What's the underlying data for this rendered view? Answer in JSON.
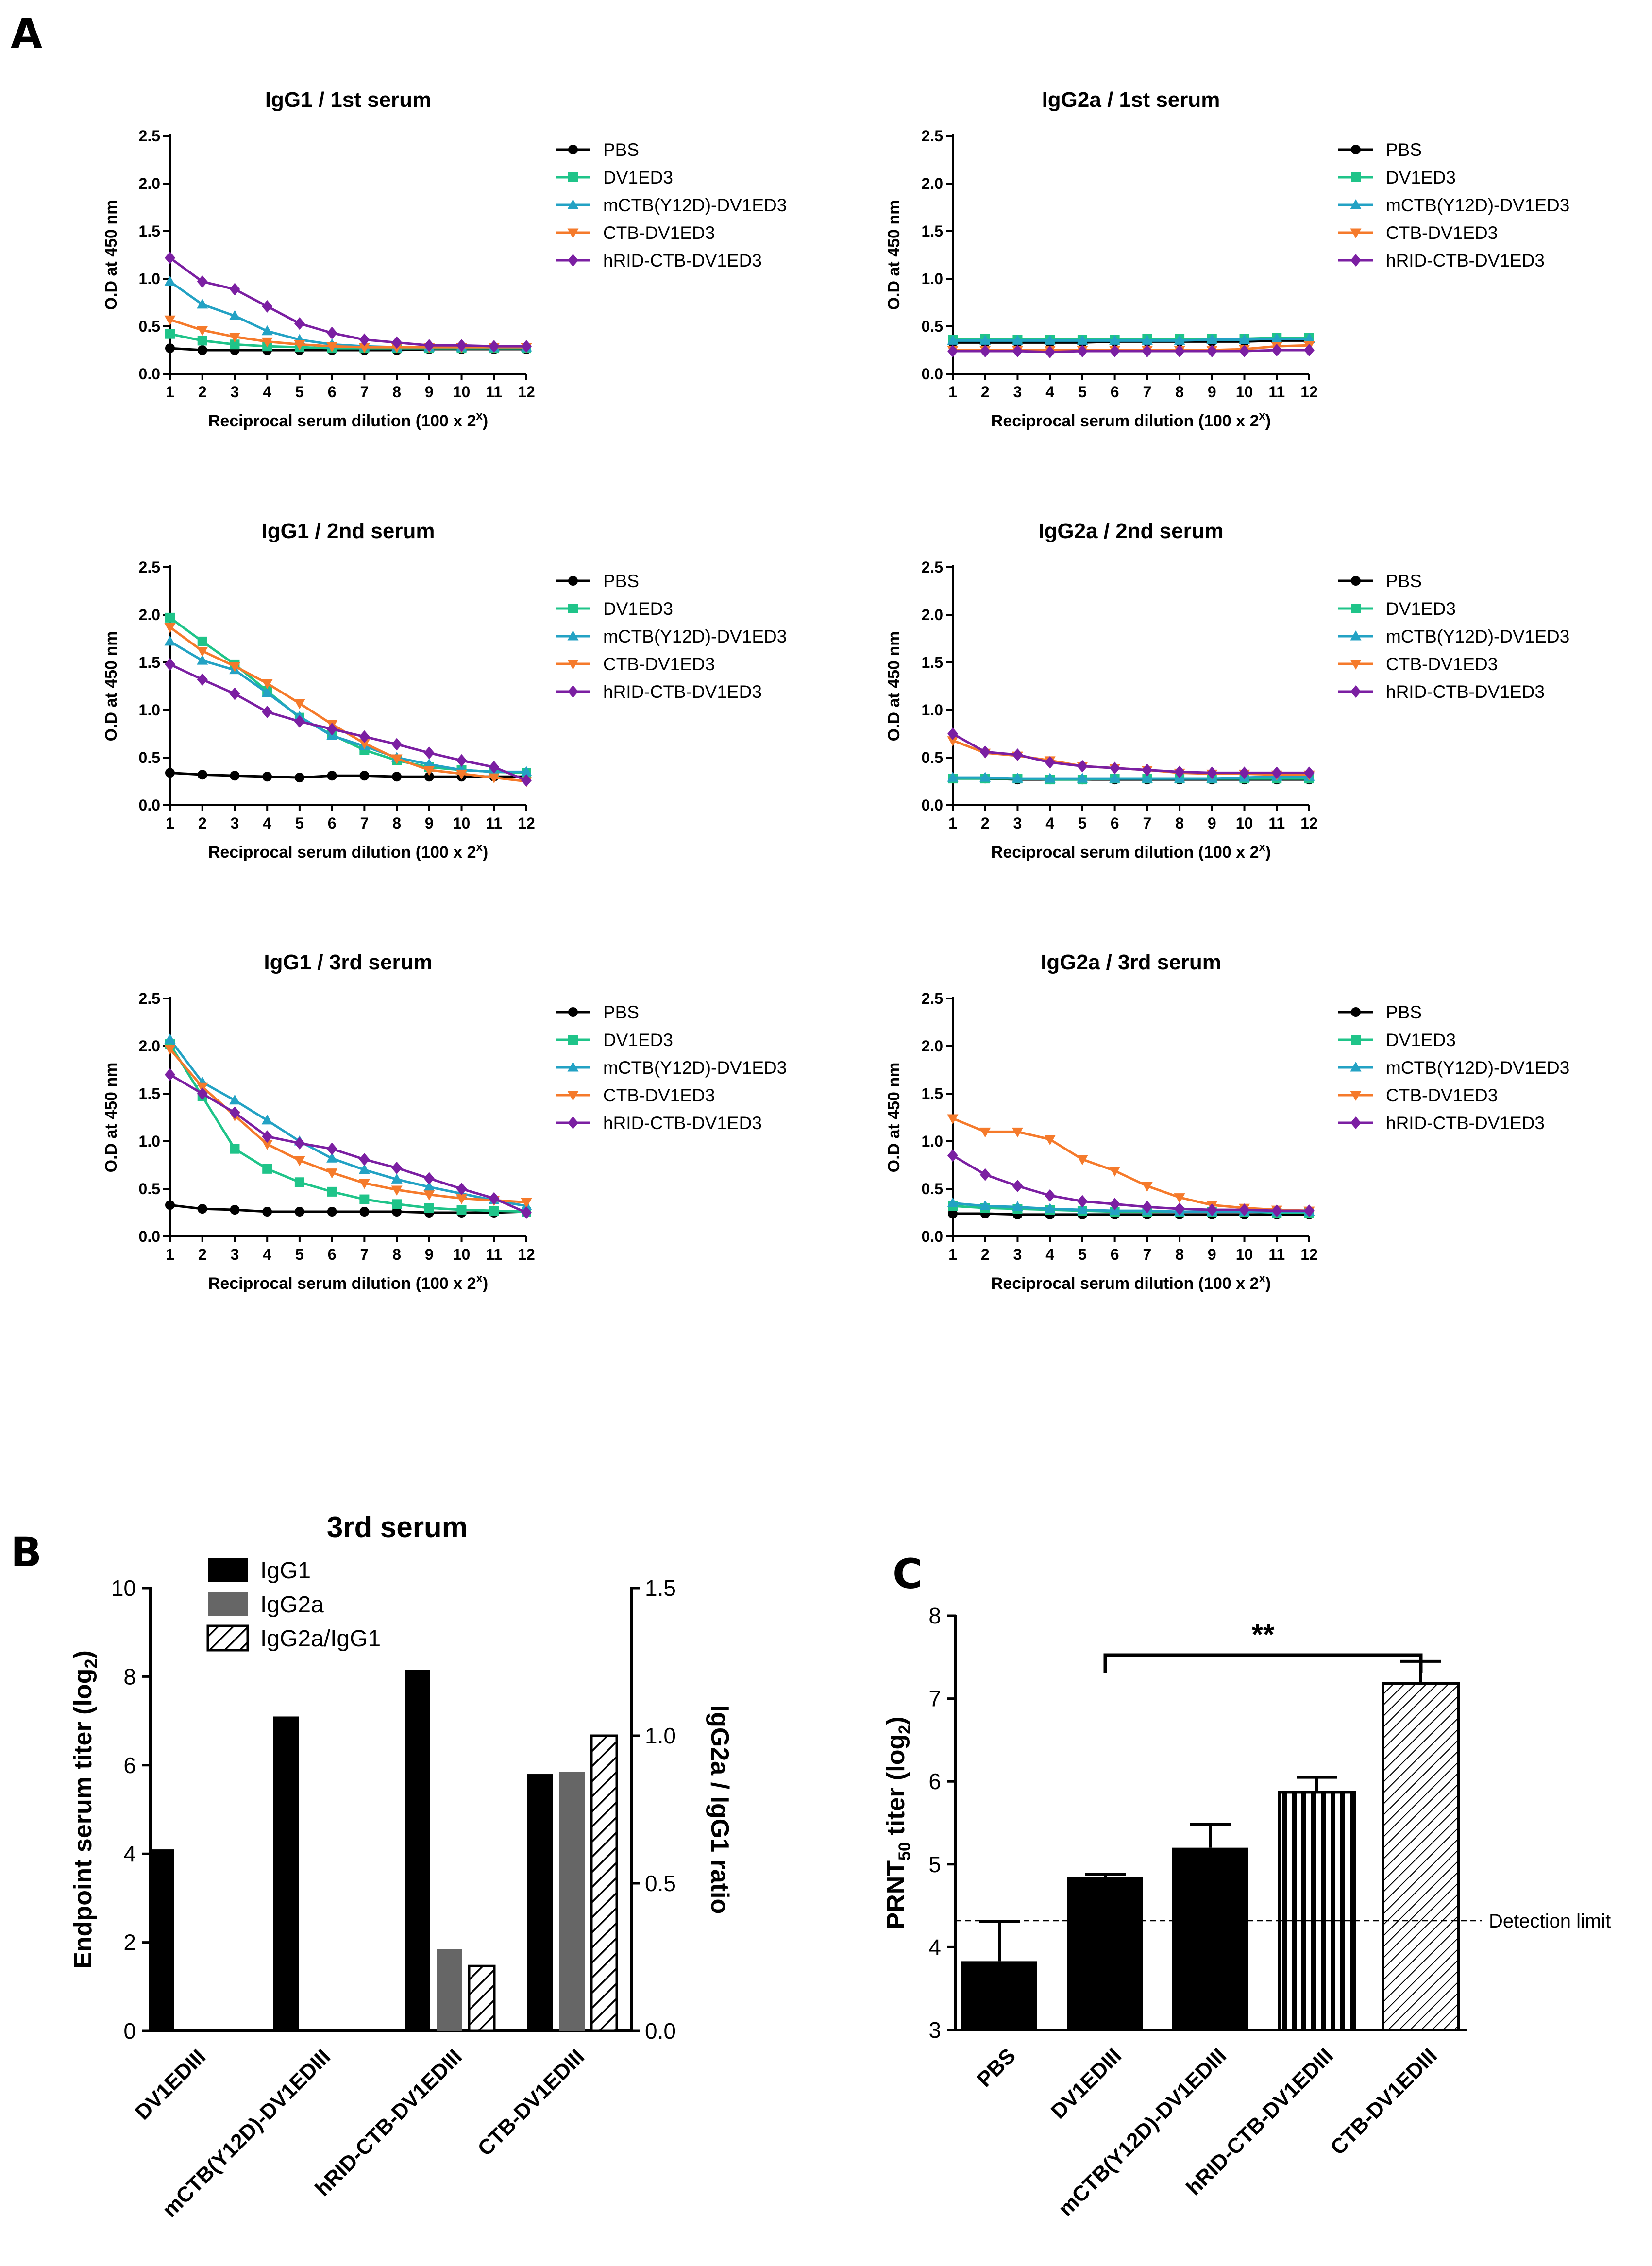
{
  "panel_labels": {
    "a": "A",
    "b": "B",
    "c": "C"
  },
  "colors": {
    "PBS": "#000000",
    "DV1ED3": "#1fc489",
    "mCTB": "#23a2c4",
    "CTB": "#f57a2b",
    "hRID": "#7b1fa2",
    "bar_black": "#000000",
    "bar_gray": "#666666"
  },
  "elisa": {
    "legend": [
      "PBS",
      "DV1ED3",
      "mCTB(Y12D)-DV1ED3",
      "CTB-DV1ED3",
      "hRID-CTB-DV1ED3"
    ],
    "ylabel": "O.D at 450 nm",
    "xlabel_main": "Reciprocal serum dilution (100 x 2",
    "xlabel_sup": "x",
    "xlabel_end": ")",
    "xticks": [
      "1",
      "2",
      "3",
      "4",
      "5",
      "6",
      "7",
      "8",
      "9",
      "10",
      "11",
      "12"
    ],
    "yticks": [
      "0.0",
      "0.5",
      "1.0",
      "1.5",
      "2.0",
      "2.5"
    ]
  },
  "chart_data": [
    {
      "type": "line",
      "title": "IgG1 / 1st serum",
      "xlabel": "Reciprocal serum dilution (100 x 2^x)",
      "ylabel": "O.D at 450 nm",
      "x": [
        1,
        2,
        3,
        4,
        5,
        6,
        7,
        8,
        9,
        10,
        11,
        12
      ],
      "ylim": [
        0,
        2.5
      ],
      "series": [
        {
          "name": "PBS",
          "values": [
            0.27,
            0.25,
            0.25,
            0.25,
            0.25,
            0.25,
            0.25,
            0.25,
            0.26,
            0.26,
            0.26,
            0.26
          ]
        },
        {
          "name": "DV1ED3",
          "values": [
            0.42,
            0.35,
            0.31,
            0.29,
            0.28,
            0.27,
            0.27,
            0.27,
            0.27,
            0.27,
            0.27,
            0.27
          ]
        },
        {
          "name": "mCTB(Y12D)-DV1ED3",
          "values": [
            0.97,
            0.73,
            0.61,
            0.45,
            0.36,
            0.31,
            0.29,
            0.28,
            0.28,
            0.28,
            0.28,
            0.28
          ]
        },
        {
          "name": "CTB-DV1ED3",
          "values": [
            0.57,
            0.46,
            0.39,
            0.34,
            0.31,
            0.29,
            0.28,
            0.28,
            0.28,
            0.28,
            0.28,
            0.28
          ]
        },
        {
          "name": "hRID-CTB-DV1ED3",
          "values": [
            1.22,
            0.97,
            0.89,
            0.71,
            0.53,
            0.43,
            0.36,
            0.33,
            0.3,
            0.3,
            0.29,
            0.29
          ]
        }
      ]
    },
    {
      "type": "line",
      "title": "IgG2a / 1st serum",
      "xlabel": "Reciprocal serum dilution (100 x 2^x)",
      "ylabel": "O.D at 450 nm",
      "x": [
        1,
        2,
        3,
        4,
        5,
        6,
        7,
        8,
        9,
        10,
        11,
        12
      ],
      "ylim": [
        0,
        2.5
      ],
      "series": [
        {
          "name": "PBS",
          "values": [
            0.33,
            0.33,
            0.33,
            0.33,
            0.33,
            0.34,
            0.34,
            0.34,
            0.34,
            0.34,
            0.35,
            0.35
          ]
        },
        {
          "name": "DV1ED3",
          "values": [
            0.36,
            0.37,
            0.36,
            0.36,
            0.36,
            0.36,
            0.37,
            0.37,
            0.37,
            0.37,
            0.38,
            0.38
          ]
        },
        {
          "name": "mCTB(Y12D)-DV1ED3",
          "values": [
            0.35,
            0.35,
            0.35,
            0.35,
            0.35,
            0.35,
            0.35,
            0.35,
            0.36,
            0.36,
            0.37,
            0.37
          ]
        },
        {
          "name": "CTB-DV1ED3",
          "values": [
            0.25,
            0.25,
            0.25,
            0.25,
            0.25,
            0.25,
            0.25,
            0.25,
            0.25,
            0.26,
            0.29,
            0.3
          ]
        },
        {
          "name": "hRID-CTB-DV1ED3",
          "values": [
            0.24,
            0.24,
            0.24,
            0.23,
            0.24,
            0.24,
            0.24,
            0.24,
            0.24,
            0.24,
            0.25,
            0.25
          ]
        }
      ]
    },
    {
      "type": "line",
      "title": "IgG1 / 2nd serum",
      "xlabel": "Reciprocal serum dilution (100 x 2^x)",
      "ylabel": "O.D at 450 nm",
      "x": [
        1,
        2,
        3,
        4,
        5,
        6,
        7,
        8,
        9,
        10,
        11,
        12
      ],
      "ylim": [
        0,
        2.5
      ],
      "series": [
        {
          "name": "PBS",
          "values": [
            0.34,
            0.32,
            0.31,
            0.3,
            0.29,
            0.31,
            0.31,
            0.3,
            0.3,
            0.3,
            0.3,
            0.3
          ]
        },
        {
          "name": "DV1ED3",
          "values": [
            1.97,
            1.72,
            1.48,
            1.2,
            0.92,
            0.74,
            0.58,
            0.47,
            0.4,
            0.37,
            0.35,
            0.34
          ]
        },
        {
          "name": "mCTB(Y12D)-DV1ED3",
          "values": [
            1.72,
            1.52,
            1.42,
            1.18,
            0.93,
            0.73,
            0.62,
            0.5,
            0.43,
            0.37,
            0.35,
            0.35
          ]
        },
        {
          "name": "CTB-DV1ED3",
          "values": [
            1.87,
            1.62,
            1.46,
            1.28,
            1.07,
            0.85,
            0.65,
            0.49,
            0.37,
            0.33,
            0.29,
            0.25
          ]
        },
        {
          "name": "hRID-CTB-DV1ED3",
          "values": [
            1.48,
            1.32,
            1.17,
            0.98,
            0.88,
            0.8,
            0.72,
            0.64,
            0.55,
            0.47,
            0.4,
            0.26
          ]
        }
      ]
    },
    {
      "type": "line",
      "title": "IgG2a / 2nd serum",
      "xlabel": "Reciprocal serum dilution (100 x 2^x)",
      "ylabel": "O.D at 450 nm",
      "x": [
        1,
        2,
        3,
        4,
        5,
        6,
        7,
        8,
        9,
        10,
        11,
        12
      ],
      "ylim": [
        0,
        2.5
      ],
      "series": [
        {
          "name": "PBS",
          "values": [
            0.28,
            0.28,
            0.27,
            0.27,
            0.27,
            0.27,
            0.27,
            0.27,
            0.27,
            0.27,
            0.27,
            0.27
          ]
        },
        {
          "name": "DV1ED3",
          "values": [
            0.28,
            0.28,
            0.28,
            0.27,
            0.27,
            0.28,
            0.28,
            0.28,
            0.28,
            0.28,
            0.28,
            0.28
          ]
        },
        {
          "name": "mCTB(Y12D)-DV1ED3",
          "values": [
            0.29,
            0.29,
            0.28,
            0.28,
            0.28,
            0.28,
            0.28,
            0.28,
            0.28,
            0.29,
            0.3,
            0.3
          ]
        },
        {
          "name": "CTB-DV1ED3",
          "values": [
            0.68,
            0.55,
            0.52,
            0.47,
            0.41,
            0.39,
            0.37,
            0.34,
            0.33,
            0.33,
            0.32,
            0.32
          ]
        },
        {
          "name": "hRID-CTB-DV1ED3",
          "values": [
            0.75,
            0.56,
            0.53,
            0.45,
            0.41,
            0.39,
            0.37,
            0.35,
            0.34,
            0.34,
            0.34,
            0.34
          ]
        }
      ]
    },
    {
      "type": "line",
      "title": "IgG1 / 3rd serum",
      "xlabel": "Reciprocal serum dilution (100 x 2^x)",
      "ylabel": "O.D at 450 nm",
      "x": [
        1,
        2,
        3,
        4,
        5,
        6,
        7,
        8,
        9,
        10,
        11,
        12
      ],
      "ylim": [
        0,
        2.5
      ],
      "series": [
        {
          "name": "PBS",
          "values": [
            0.33,
            0.29,
            0.28,
            0.26,
            0.26,
            0.26,
            0.26,
            0.26,
            0.25,
            0.25,
            0.25,
            0.26
          ]
        },
        {
          "name": "DV1ED3",
          "values": [
            2.02,
            1.47,
            0.92,
            0.71,
            0.57,
            0.47,
            0.39,
            0.34,
            0.3,
            0.28,
            0.27,
            0.26
          ]
        },
        {
          "name": "mCTB(Y12D)-DV1ED3",
          "values": [
            2.07,
            1.62,
            1.43,
            1.22,
            1.0,
            0.82,
            0.7,
            0.6,
            0.52,
            0.45,
            0.38,
            0.32
          ]
        },
        {
          "name": "CTB-DV1ED3",
          "values": [
            1.97,
            1.57,
            1.27,
            0.97,
            0.8,
            0.67,
            0.56,
            0.49,
            0.44,
            0.4,
            0.38,
            0.36
          ]
        },
        {
          "name": "hRID-CTB-DV1ED3",
          "values": [
            1.7,
            1.5,
            1.3,
            1.05,
            0.98,
            0.92,
            0.81,
            0.72,
            0.61,
            0.5,
            0.4,
            0.25
          ]
        }
      ]
    },
    {
      "type": "line",
      "title": "IgG2a / 3rd serum",
      "xlabel": "Reciprocal serum dilution (100 x 2^x)",
      "ylabel": "O.D at 450 nm",
      "x": [
        1,
        2,
        3,
        4,
        5,
        6,
        7,
        8,
        9,
        10,
        11,
        12
      ],
      "ylim": [
        0,
        2.5
      ],
      "series": [
        {
          "name": "PBS",
          "values": [
            0.24,
            0.24,
            0.23,
            0.23,
            0.23,
            0.23,
            0.23,
            0.23,
            0.23,
            0.23,
            0.23,
            0.23
          ]
        },
        {
          "name": "DV1ED3",
          "values": [
            0.32,
            0.3,
            0.29,
            0.28,
            0.27,
            0.26,
            0.26,
            0.26,
            0.26,
            0.26,
            0.25,
            0.25
          ]
        },
        {
          "name": "mCTB(Y12D)-DV1ED3",
          "values": [
            0.35,
            0.32,
            0.31,
            0.29,
            0.28,
            0.27,
            0.27,
            0.26,
            0.26,
            0.26,
            0.26,
            0.26
          ]
        },
        {
          "name": "CTB-DV1ED3",
          "values": [
            1.24,
            1.1,
            1.1,
            1.02,
            0.81,
            0.69,
            0.53,
            0.41,
            0.33,
            0.3,
            0.28,
            0.27
          ]
        },
        {
          "name": "hRID-CTB-DV1ED3",
          "values": [
            0.85,
            0.65,
            0.53,
            0.43,
            0.37,
            0.34,
            0.31,
            0.29,
            0.28,
            0.28,
            0.27,
            0.27
          ]
        }
      ]
    },
    {
      "type": "bar",
      "title": "3rd serum",
      "categories": [
        "DV1EDIII",
        "mCTB(Y12D)-DV1EDIII",
        "hRID-CTB-DV1EDIII",
        "CTB-DV1EDIII"
      ],
      "ylabel": "Endpoint serum titer (log",
      "ylabel_sub": "2",
      "ylabel_end": ")",
      "y2label": "IgG2a / IgG1 ratio",
      "ylim": [
        0,
        10
      ],
      "y2lim": [
        0,
        1.5
      ],
      "yticks": [
        "0",
        "2",
        "4",
        "6",
        "8",
        "10"
      ],
      "y2ticks": [
        "0.0",
        "0.5",
        "1.0",
        "1.5"
      ],
      "series": [
        {
          "name": "IgG1",
          "values": [
            4.1,
            7.1,
            8.15,
            5.8
          ],
          "axis": "left"
        },
        {
          "name": "IgG2a",
          "values": [
            0,
            0,
            1.85,
            5.85
          ],
          "axis": "left"
        },
        {
          "name": "IgG2a/IgG1",
          "values": [
            0,
            0,
            0.22,
            1.0
          ],
          "axis": "right"
        }
      ]
    },
    {
      "type": "bar",
      "title": "",
      "categories": [
        "PBS",
        "DV1EDIII",
        "mCTB(Y12D)-DV1EDIII",
        "hRID-CTB-DV1EDIII",
        "CTB-DV1EDIII"
      ],
      "ylabel": "PRNT",
      "ylabel_sub": "50",
      "ylabel_mid": " titer (log",
      "ylabel_sub2": "2",
      "ylabel_end": ")",
      "ylim": [
        3,
        8
      ],
      "yticks": [
        "3",
        "4",
        "5",
        "6",
        "7",
        "8"
      ],
      "values": [
        3.83,
        4.85,
        5.2,
        5.87,
        7.18
      ],
      "errors": [
        0.48,
        0.03,
        0.28,
        0.18,
        0.27
      ],
      "detection_limit": 4.32,
      "detection_label": "Detection limit",
      "significance": {
        "from": "DV1EDIII",
        "to": "CTB-DV1EDIII",
        "label": "**"
      }
    }
  ]
}
